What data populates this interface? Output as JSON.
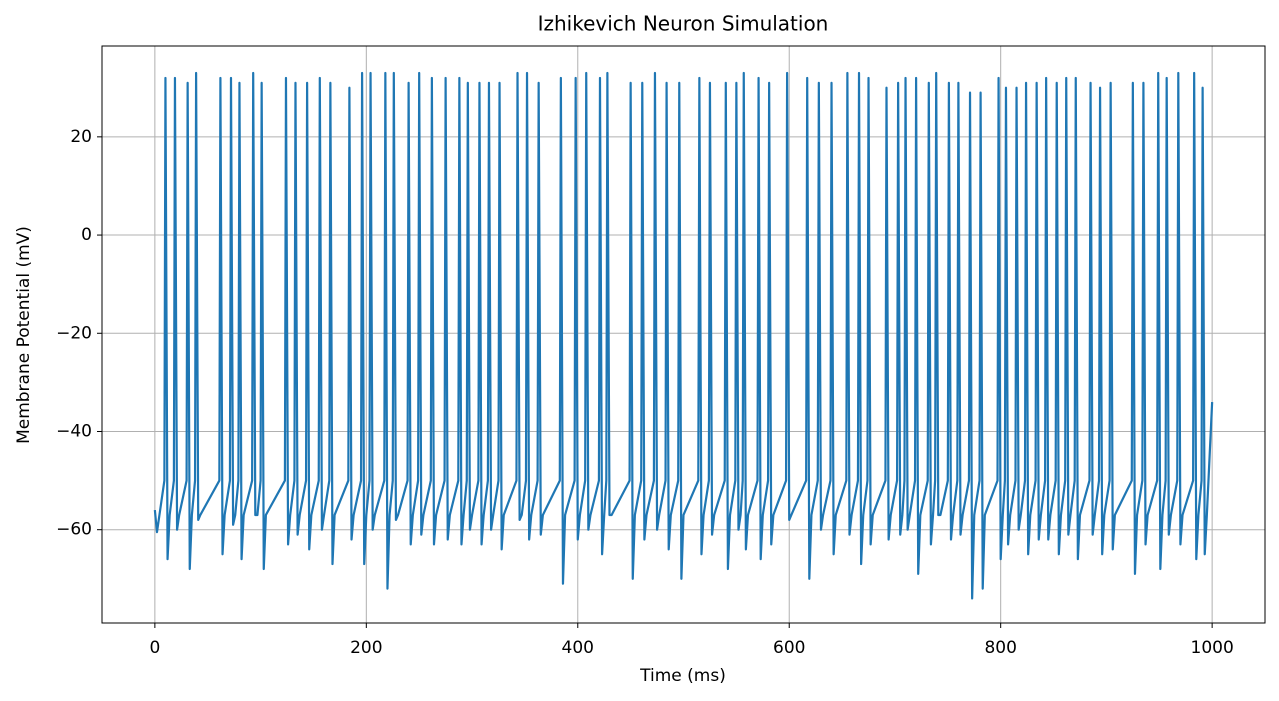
{
  "chart_data": {
    "type": "line",
    "title": "Izhikevich Neuron Simulation",
    "x_label": "Time (ms)",
    "y_label": "Membrane Potential (mV)",
    "color": "#1f77b4",
    "grid": true,
    "xlim": [
      -50,
      1050
    ],
    "ylim": [
      -79,
      38.5
    ],
    "xticks": [
      0,
      200,
      400,
      600,
      800,
      1000
    ],
    "yticks": [
      {
        "value": -60,
        "label": "−60"
      },
      {
        "value": -40,
        "label": "−40"
      },
      {
        "value": -20,
        "label": "−20"
      },
      0,
      20
    ],
    "x": [
      0,
      2,
      9,
      10,
      12,
      14,
      18,
      19,
      21,
      23,
      30,
      31,
      33,
      35,
      38,
      39,
      41,
      43,
      61,
      62,
      64,
      66,
      71,
      72,
      74,
      76,
      79,
      80,
      82,
      84,
      92,
      93,
      95,
      97,
      100,
      101,
      103,
      105,
      123,
      124,
      126,
      128,
      132,
      133,
      135,
      137,
      143,
      144,
      146,
      148,
      155,
      156,
      158,
      160,
      165,
      166,
      168,
      170,
      183,
      184,
      186,
      188,
      195,
      196,
      198,
      200,
      203,
      204,
      206,
      208,
      217,
      218,
      220,
      222,
      225,
      226,
      228,
      230,
      239,
      240,
      242,
      244,
      249,
      250,
      252,
      254,
      261,
      262,
      264,
      266,
      274,
      275,
      277,
      279,
      287,
      288,
      290,
      292,
      295,
      296,
      298,
      300,
      306,
      307,
      309,
      311,
      315,
      316,
      318,
      320,
      325,
      326,
      328,
      330,
      342,
      343,
      345,
      347,
      351,
      352,
      354,
      356,
      362,
      363,
      365,
      367,
      383,
      384,
      386,
      388,
      397,
      398,
      400,
      402,
      407,
      408,
      410,
      412,
      420,
      421,
      423,
      425,
      427,
      428,
      430,
      432,
      449,
      450,
      452,
      454,
      460,
      461,
      463,
      465,
      472,
      473,
      475,
      477,
      483,
      484,
      486,
      488,
      495,
      496,
      498,
      500,
      514,
      515,
      517,
      519,
      524,
      525,
      527,
      529,
      539,
      540,
      542,
      544,
      549,
      550,
      552,
      554,
      556,
      557,
      559,
      561,
      570,
      571,
      573,
      575,
      580,
      581,
      583,
      585,
      597,
      598,
      600,
      602,
      616,
      617,
      619,
      621,
      627,
      628,
      630,
      632,
      639,
      640,
      642,
      644,
      654,
      655,
      657,
      659,
      665,
      666,
      668,
      670,
      674,
      675,
      677,
      679,
      691,
      692,
      694,
      696,
      702,
      703,
      705,
      707,
      709,
      710,
      712,
      714,
      719,
      720,
      722,
      724,
      731,
      732,
      734,
      736,
      738,
      739,
      741,
      743,
      750,
      751,
      753,
      755,
      759,
      760,
      762,
      764,
      770,
      771,
      773,
      775,
      780,
      781,
      783,
      785,
      797,
      798,
      800,
      802,
      804,
      805,
      807,
      809,
      814,
      815,
      817,
      819,
      823,
      824,
      826,
      828,
      833,
      834,
      836,
      838,
      842,
      843,
      845,
      847,
      852,
      853,
      855,
      857,
      861,
      862,
      864,
      866,
      870,
      871,
      873,
      875,
      884,
      885,
      887,
      889,
      893,
      894,
      896,
      898,
      903,
      904,
      906,
      908,
      924,
      925,
      927,
      929,
      934,
      935,
      937,
      939,
      948,
      949,
      951,
      953,
      956,
      957,
      959,
      961,
      967,
      968,
      970,
      972,
      982,
      983,
      985,
      987,
      990,
      991,
      993,
      995,
      1000
    ],
    "values": [
      -56,
      -60.5,
      -50,
      32,
      -66,
      -57,
      -50,
      32,
      -60,
      -57,
      -50,
      31,
      -68,
      -57,
      -50,
      33,
      -58,
      -57,
      -50,
      32,
      -65,
      -57,
      -50,
      32,
      -59,
      -57,
      -50,
      31,
      -66,
      -57,
      -50,
      33,
      -57,
      -57,
      -50,
      31,
      -68,
      -57,
      -50,
      32,
      -63,
      -57,
      -50,
      31,
      -61,
      -57,
      -50,
      31,
      -64,
      -57,
      -50,
      32,
      -60,
      -57,
      -50,
      31,
      -67,
      -57,
      -50,
      30,
      -62,
      -57,
      -50,
      33,
      -67,
      -57,
      -50,
      33,
      -60,
      -57,
      -50,
      33,
      -72,
      -57,
      -50,
      33,
      -58,
      -57,
      -50,
      31,
      -63,
      -57,
      -50,
      33,
      -61,
      -57,
      -50,
      32,
      -63,
      -57,
      -50,
      32,
      -62,
      -57,
      -50,
      32,
      -63,
      -57,
      -50,
      31,
      -60,
      -57,
      -50,
      31,
      -63,
      -57,
      -50,
      31,
      -60,
      -57,
      -50,
      31,
      -64,
      -57,
      -50,
      33,
      -58,
      -57,
      -50,
      33,
      -62,
      -57,
      -50,
      31,
      -61,
      -57,
      -50,
      32,
      -71,
      -57,
      -50,
      32,
      -62,
      -57,
      -50,
      33,
      -60,
      -57,
      -50,
      32,
      -65,
      -57,
      -50,
      33,
      -57,
      -57,
      -50,
      31,
      -70,
      -57,
      -50,
      31,
      -62,
      -57,
      -50,
      33,
      -60,
      -57,
      -50,
      31,
      -64,
      -57,
      -50,
      31,
      -70,
      -57,
      -50,
      32,
      -65,
      -57,
      -50,
      31,
      -61,
      -57,
      -50,
      31,
      -68,
      -57,
      -50,
      31,
      -60,
      -57,
      -50,
      33,
      -64,
      -57,
      -50,
      32,
      -66,
      -57,
      -50,
      31,
      -63,
      -57,
      -50,
      33,
      -58,
      -57,
      -50,
      32,
      -70,
      -57,
      -50,
      31,
      -60,
      -57,
      -50,
      31,
      -65,
      -57,
      -50,
      33,
      -61,
      -57,
      -50,
      33,
      -67,
      -57,
      -50,
      32,
      -63,
      -57,
      -50,
      30,
      -62,
      -57,
      -50,
      31,
      -61,
      -57,
      -50,
      32,
      -60,
      -57,
      -50,
      32,
      -69,
      -57,
      -50,
      31,
      -63,
      -57,
      -50,
      33,
      -57,
      -57,
      -50,
      31,
      -62,
      -57,
      -50,
      31,
      -61,
      -57,
      -50,
      29,
      -74,
      -57,
      -50,
      29,
      -72,
      -57,
      -50,
      32,
      -66,
      -57,
      -50,
      30,
      -63,
      -57,
      -50,
      30,
      -60,
      -57,
      -50,
      31,
      -65,
      -57,
      -50,
      31,
      -62,
      -57,
      -50,
      32,
      -62,
      -57,
      -50,
      31,
      -65,
      -57,
      -50,
      32,
      -61,
      -57,
      -50,
      32,
      -66,
      -57,
      -50,
      31,
      -61,
      -57,
      -50,
      30,
      -65,
      -57,
      -50,
      31,
      -64,
      -57,
      -50,
      31,
      -69,
      -57,
      -50,
      31,
      -63,
      -57,
      -50,
      33,
      -68,
      -57,
      -50,
      32,
      -61,
      -57,
      -50,
      33,
      -63,
      -57,
      -50,
      33,
      -66,
      -57,
      -50,
      30,
      -65,
      -57,
      -34
    ]
  }
}
